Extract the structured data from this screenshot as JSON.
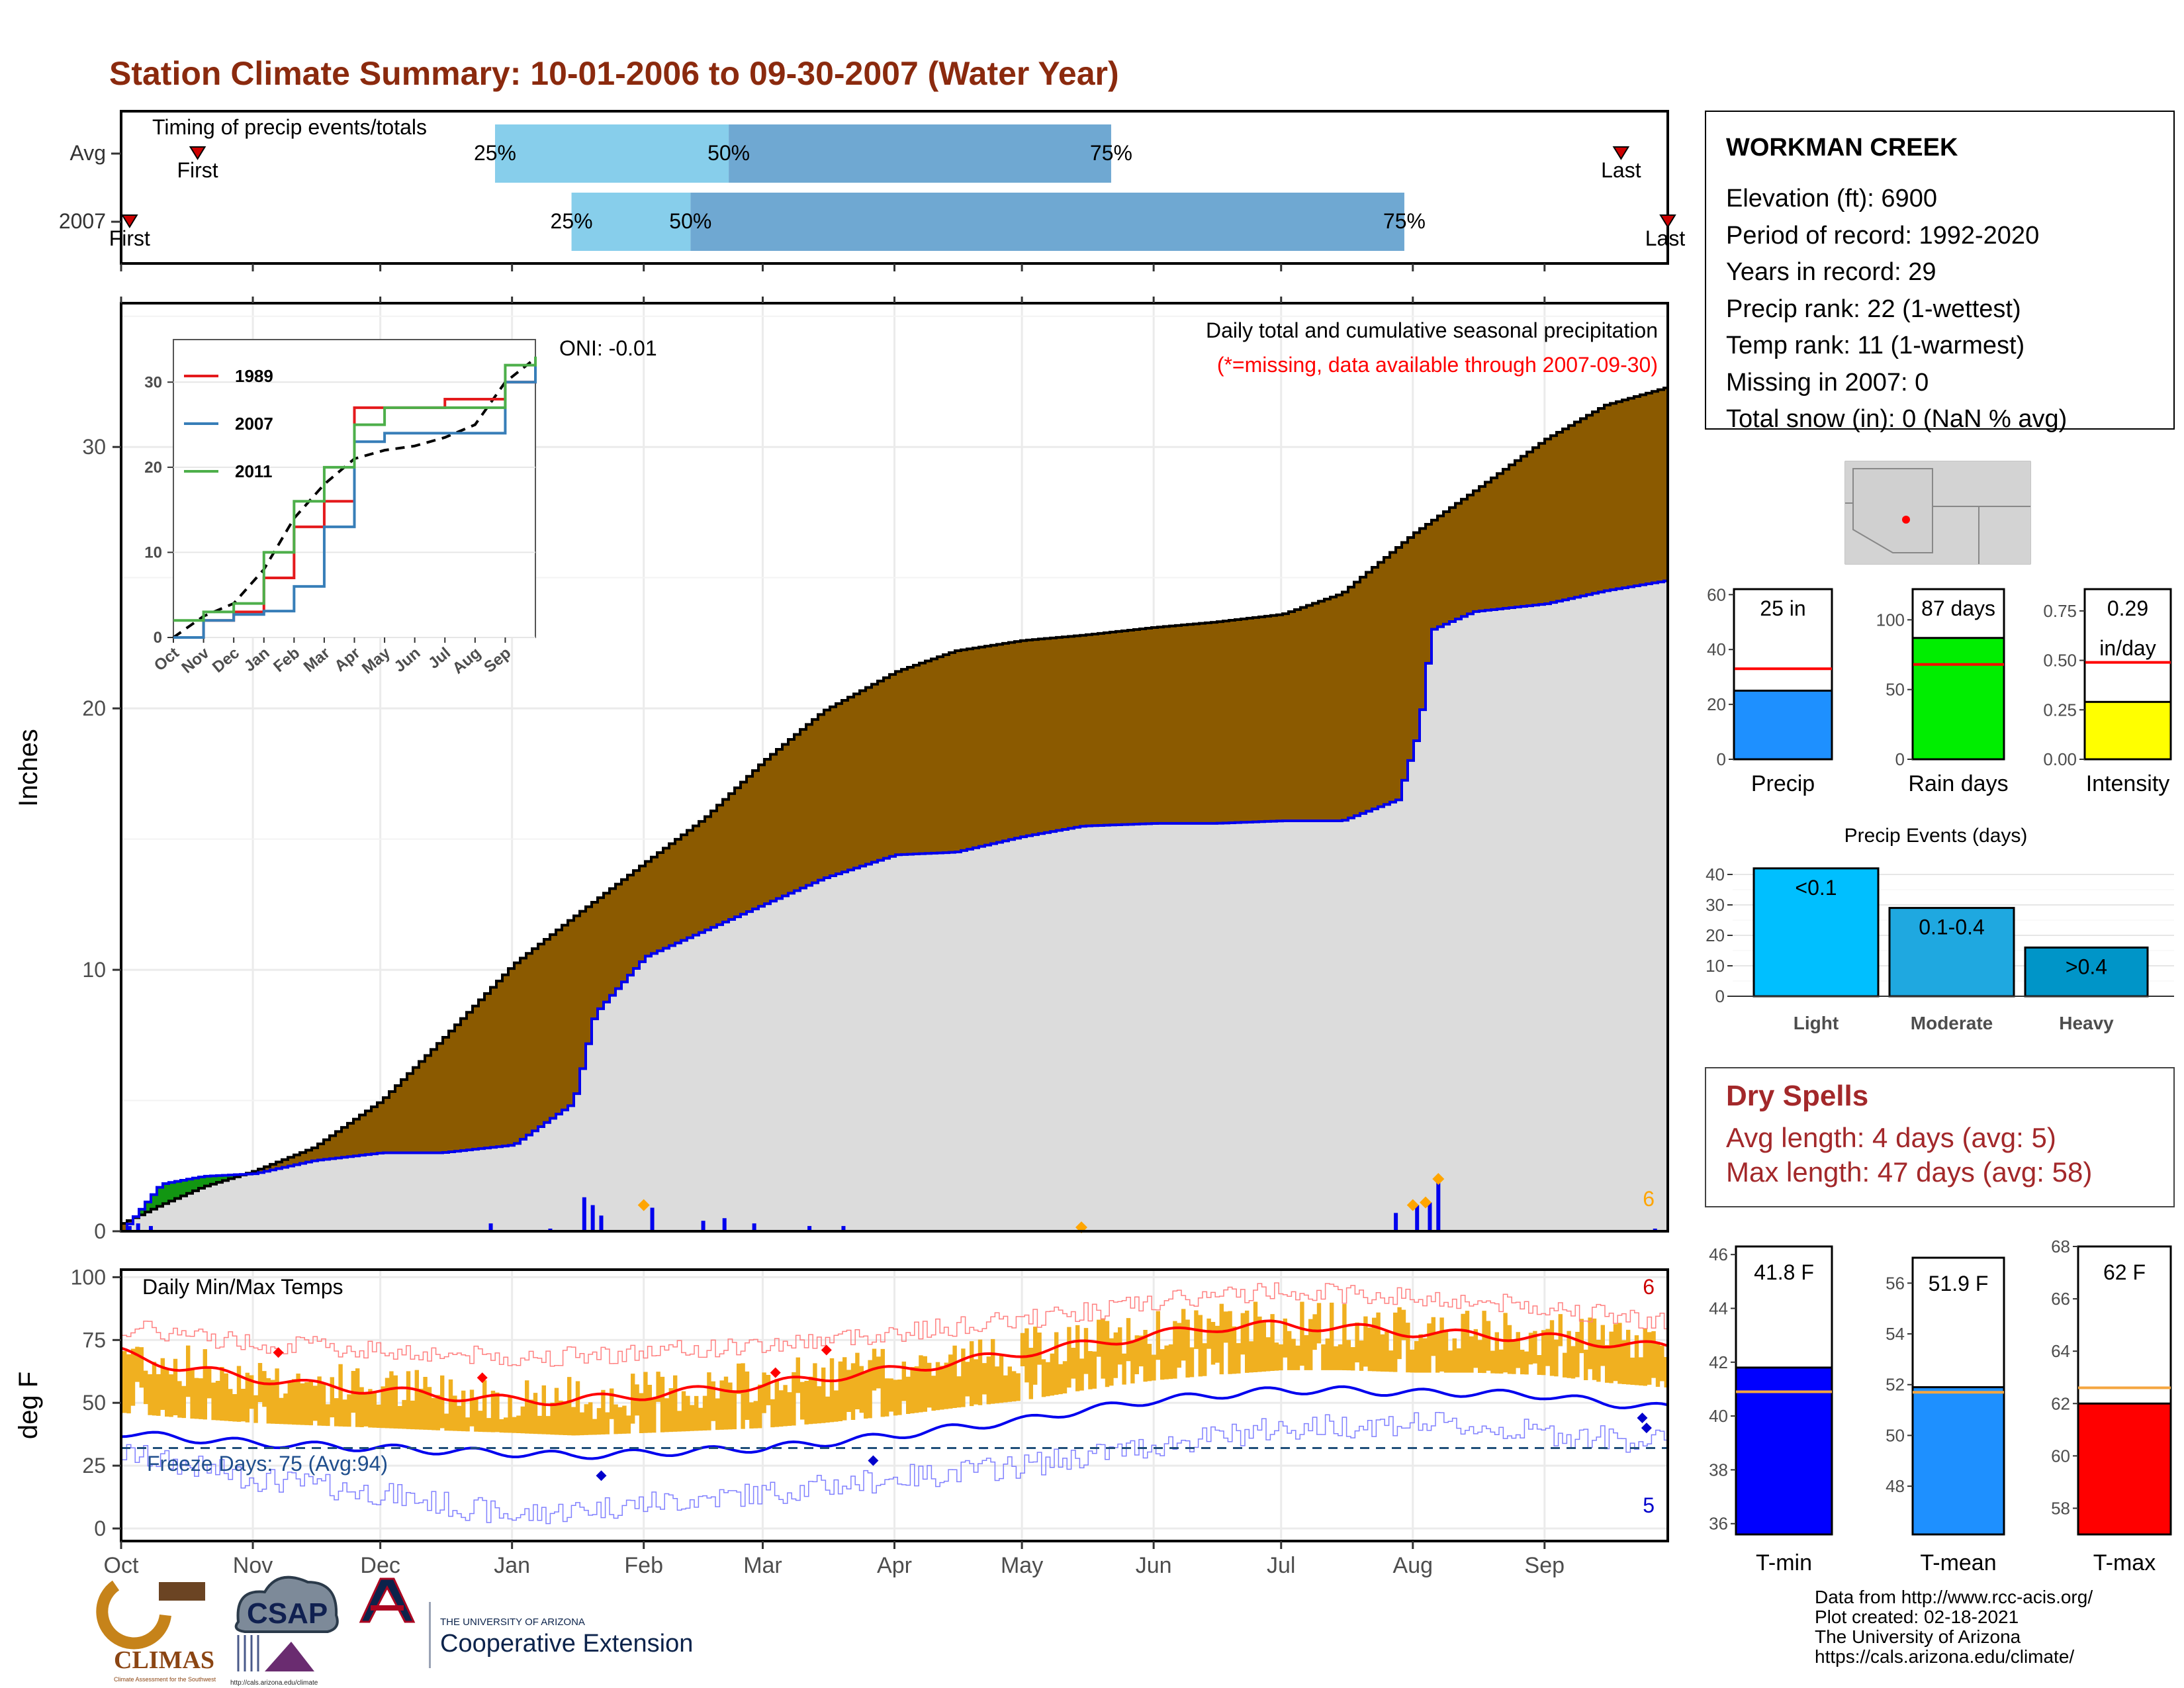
{
  "title": "Station Climate Summary: 10-01-2006 to 09-30-2007 (Water Year)",
  "colors": {
    "title": "#8b2a0e",
    "precip_light": "#87ceeb",
    "precip_dark": "#6fa8d2",
    "cum_fill": "#8b5a00",
    "grey_fill": "#dcdcdc",
    "green_fill": "#129612",
    "blue_line": "#0000ee",
    "orange": "#ffa500",
    "temp_bar": "#f0b020",
    "red_line": "#ff0000",
    "dry_spell": "#a3282a"
  },
  "timing_panel": {
    "label": "Timing of precip events/totals",
    "rows": [
      {
        "name": "Avg",
        "p25_label": "25%",
        "p50_label": "50%",
        "p75_label": "75%",
        "first_label": "First",
        "last_label": "Last",
        "first_date": "2006-10-19",
        "p25_date": "2006-12-28",
        "p50_date": "2007-02-21",
        "p75_date": "2007-05-22",
        "last_date": "2007-09-19"
      },
      {
        "name": "2007",
        "p25_label": "25%",
        "p50_label": "50%",
        "p75_label": "75%",
        "first_label": "First",
        "last_label": "Last",
        "first_date": "2006-10-03",
        "p25_date": "2007-01-15",
        "p50_date": "2007-02-12",
        "p75_date": "2007-07-30",
        "last_date": "2007-09-30"
      }
    ]
  },
  "precip_panel": {
    "ylabel": "Inches",
    "yticks": [
      0,
      10,
      20,
      30
    ],
    "ylim": [
      0,
      35.5
    ],
    "oni_label": "ONI: -0.01",
    "subtitle": "Daily total and cumulative seasonal precipitation",
    "missing_note": "(*=missing, data available through 2007-09-30)",
    "corner_count": "6",
    "inset": {
      "yticks": [
        0,
        10,
        20,
        30
      ],
      "months": [
        "Oct",
        "Nov",
        "Dec",
        "Jan",
        "Feb",
        "Mar",
        "Apr",
        "May",
        "Jun",
        "Jul",
        "Aug",
        "Sep"
      ],
      "legend": [
        {
          "name": "1989",
          "color": "#e41a1c"
        },
        {
          "name": "2007",
          "color": "#377eb8"
        },
        {
          "name": "2011",
          "color": "#4daf4a"
        }
      ]
    }
  },
  "temp_panel": {
    "ylabel": "deg F",
    "label": "Daily Min/Max Temps",
    "freeze_label": "Freeze Days: 75 (Avg:94)",
    "yticks": [
      0,
      25,
      50,
      75,
      100
    ],
    "ylim": [
      -5,
      103
    ],
    "freeze_line": 32,
    "count_top": "6",
    "count_bottom": "5"
  },
  "x_axis": {
    "months": [
      "Oct",
      "Nov",
      "Dec",
      "Jan",
      "Feb",
      "Mar",
      "Apr",
      "May",
      "Jun",
      "Jul",
      "Aug",
      "Sep"
    ]
  },
  "station_info": {
    "name": "WORKMAN CREEK",
    "lines": [
      "Elevation (ft): 6900",
      "Period of record: 1992-2020",
      "Years in record: 29",
      "Precip rank: 22 (1-wettest)",
      "Temp rank: 11 (1-warmest)",
      "Missing in 2007: 0",
      "Total snow (in): 0 (NaN % avg)"
    ]
  },
  "summary_bars": [
    {
      "name": "Precip",
      "value_label": "25 in",
      "value_label2": "",
      "value": 25,
      "avg": 33,
      "ymax": 62,
      "ticks": [
        "0",
        "20",
        "40",
        "60"
      ],
      "tick_vals": [
        0,
        20,
        40,
        60
      ],
      "color": "#1e90ff"
    },
    {
      "name": "Rain days",
      "value_label": "87 days",
      "value_label2": "",
      "value": 87,
      "avg": 68,
      "ymax": 122,
      "ticks": [
        "0",
        "50",
        "100"
      ],
      "tick_vals": [
        0,
        50,
        100
      ],
      "color": "#00ee00"
    },
    {
      "name": "Intensity",
      "value_label": "0.29",
      "value_label2": "in/day",
      "value": 0.29,
      "avg": 0.49,
      "ymax": 0.86,
      "ticks": [
        "0.00",
        "0.25",
        "0.50",
        "0.75"
      ],
      "tick_vals": [
        0,
        0.25,
        0.5,
        0.75
      ],
      "color": "#ffff00"
    }
  ],
  "precip_events": {
    "title": "Precip Events (days)",
    "yticks": [
      0,
      10,
      20,
      30,
      40
    ],
    "categories": [
      "Light",
      "Moderate",
      "Heavy"
    ],
    "labels": [
      "<0.1",
      "0.1-0.4",
      ">0.4"
    ],
    "values": [
      42,
      29,
      16
    ],
    "colors": [
      "#00bfff",
      "#1fa8e0",
      "#0095c8"
    ]
  },
  "dry_spells": {
    "title": "Dry Spells",
    "avg_line": "Avg length: 4 days (avg: 5)",
    "max_line": "Max length: 47 days (avg: 58)"
  },
  "temp_bars": [
    {
      "name": "T-min",
      "value_label": "41.8 F",
      "value": 41.8,
      "avg": 40.9,
      "ylim": [
        35.6,
        46.3
      ],
      "ticks": [
        36,
        38,
        40,
        42,
        44,
        46
      ],
      "color": "#0000ff"
    },
    {
      "name": "T-mean",
      "value_label": "51.9 F",
      "value": 51.9,
      "avg": 51.7,
      "ylim": [
        46.1,
        57.0
      ],
      "ticks": [
        48,
        50,
        52,
        54,
        56
      ],
      "color": "#1e90ff"
    },
    {
      "name": "T-max",
      "value_label": "62 F",
      "value": 62.0,
      "avg": 62.6,
      "ylim": [
        57.0,
        68.0
      ],
      "ticks": [
        58,
        60,
        62,
        64,
        66,
        68
      ],
      "color": "#ff0000"
    }
  ],
  "credits": {
    "lines": [
      "Data from http://www.rcc-acis.org/",
      "Plot created: 02-18-2021",
      "The University of Arizona",
      "https://cals.arizona.edu/climate/"
    ],
    "logo_climas": "CLIMAS",
    "logo_climas_sub": "Climate Assessment for the Southwest",
    "logo_csap": "CSAP",
    "logo_csap_url": "http://cals.arizona.edu/climate",
    "ua_line1": "THE UNIVERSITY OF ARIZONA",
    "ua_line2": "Cooperative Extension"
  },
  "chart_data": [
    {
      "type": "area",
      "panel": "cumulative seasonal precipitation",
      "x_unit": "date",
      "ylabel": "Inches",
      "ylim": [
        0,
        35.5
      ],
      "series": [
        {
          "name": "cumulative avg",
          "points": [
            [
              "2006-10-01",
              0.3
            ],
            [
              "2006-10-10",
              1.0
            ],
            [
              "2006-10-20",
              1.7
            ],
            [
              "2006-11-01",
              2.3
            ],
            [
              "2006-11-15",
              3.2
            ],
            [
              "2006-12-01",
              5.0
            ],
            [
              "2006-12-15",
              7.3
            ],
            [
              "2007-01-01",
              10.2
            ],
            [
              "2007-01-15",
              12.0
            ],
            [
              "2007-02-01",
              14.1
            ],
            [
              "2007-02-15",
              15.8
            ],
            [
              "2007-03-01",
              18.0
            ],
            [
              "2007-03-15",
              19.9
            ],
            [
              "2007-04-01",
              21.4
            ],
            [
              "2007-04-15",
              22.2
            ],
            [
              "2007-05-01",
              22.6
            ],
            [
              "2007-05-15",
              22.8
            ],
            [
              "2007-06-01",
              23.1
            ],
            [
              "2007-06-15",
              23.3
            ],
            [
              "2007-07-01",
              23.6
            ],
            [
              "2007-07-15",
              24.4
            ],
            [
              "2007-08-01",
              26.7
            ],
            [
              "2007-08-15",
              28.3
            ],
            [
              "2007-09-01",
              30.3
            ],
            [
              "2007-09-15",
              31.6
            ],
            [
              "2007-09-30",
              32.3
            ]
          ]
        },
        {
          "name": "cumulative 2007",
          "points": [
            [
              "2006-10-01",
              0
            ],
            [
              "2006-10-05",
              0.8
            ],
            [
              "2006-10-10",
              1.8
            ],
            [
              "2006-10-20",
              2.1
            ],
            [
              "2006-11-01",
              2.2
            ],
            [
              "2006-11-15",
              2.7
            ],
            [
              "2006-12-01",
              3.0
            ],
            [
              "2006-12-15",
              3.0
            ],
            [
              "2007-01-01",
              3.3
            ],
            [
              "2007-01-15",
              4.9
            ],
            [
              "2007-01-20",
              8.3
            ],
            [
              "2007-02-01",
              10.5
            ],
            [
              "2007-02-15",
              11.5
            ],
            [
              "2007-03-01",
              12.5
            ],
            [
              "2007-03-15",
              13.5
            ],
            [
              "2007-04-01",
              14.4
            ],
            [
              "2007-04-15",
              14.5
            ],
            [
              "2007-05-01",
              15.1
            ],
            [
              "2007-05-15",
              15.5
            ],
            [
              "2007-06-01",
              15.6
            ],
            [
              "2007-06-15",
              15.6
            ],
            [
              "2007-07-01",
              15.7
            ],
            [
              "2007-07-15",
              15.7
            ],
            [
              "2007-07-28",
              16.5
            ],
            [
              "2007-08-02",
              19.2
            ],
            [
              "2007-08-05",
              23.0
            ],
            [
              "2007-08-15",
              23.7
            ],
            [
              "2007-09-01",
              24.0
            ],
            [
              "2007-09-15",
              24.5
            ],
            [
              "2007-09-30",
              24.9
            ]
          ]
        }
      ]
    },
    {
      "type": "bar",
      "panel": "daily precipitation",
      "x_unit": "date",
      "ylabel": "Inches",
      "points": [
        [
          "2006-10-03",
          0.2
        ],
        [
          "2006-10-05",
          0.3
        ],
        [
          "2006-10-08",
          0.2
        ],
        [
          "2006-11-12",
          0.05
        ],
        [
          "2006-12-27",
          0.3
        ],
        [
          "2007-01-10",
          0.1
        ],
        [
          "2007-01-18",
          1.3
        ],
        [
          "2007-01-20",
          1.0
        ],
        [
          "2007-01-22",
          0.6
        ],
        [
          "2007-02-03",
          0.9
        ],
        [
          "2007-02-15",
          0.4
        ],
        [
          "2007-02-20",
          0.5
        ],
        [
          "2007-02-27",
          0.3
        ],
        [
          "2007-03-12",
          0.2
        ],
        [
          "2007-03-20",
          0.2
        ],
        [
          "2007-04-12",
          0.05
        ],
        [
          "2007-05-16",
          0.05
        ],
        [
          "2007-07-28",
          0.7
        ],
        [
          "2007-08-02",
          1.0
        ],
        [
          "2007-08-05",
          1.1
        ],
        [
          "2007-08-07",
          1.9
        ],
        [
          "2007-09-27",
          0.1
        ]
      ]
    },
    {
      "type": "line",
      "panel": "daily min/max temperatures",
      "x_unit": "date",
      "ylabel": "deg F",
      "ylim": [
        -5,
        103
      ],
      "series": [
        {
          "name": "avg max",
          "points": [
            [
              "2006-10-01",
              70
            ],
            [
              "2006-10-15",
              64
            ],
            [
              "2006-11-01",
              60
            ],
            [
              "2006-11-15",
              57
            ],
            [
              "2006-12-01",
              55
            ],
            [
              "2006-12-15",
              53
            ],
            [
              "2007-01-01",
              51
            ],
            [
              "2007-01-15",
              51
            ],
            [
              "2007-02-01",
              53
            ],
            [
              "2007-02-15",
              55
            ],
            [
              "2007-03-01",
              57
            ],
            [
              "2007-03-15",
              60
            ],
            [
              "2007-04-01",
              63
            ],
            [
              "2007-04-15",
              66
            ],
            [
              "2007-05-01",
              70
            ],
            [
              "2007-05-15",
              73
            ],
            [
              "2007-06-01",
              77
            ],
            [
              "2007-06-15",
              80
            ],
            [
              "2007-07-01",
              81
            ],
            [
              "2007-07-15",
              80
            ],
            [
              "2007-08-01",
              78
            ],
            [
              "2007-08-15",
              77
            ],
            [
              "2007-09-01",
              76
            ],
            [
              "2007-09-15",
              74
            ],
            [
              "2007-09-30",
              72
            ]
          ]
        },
        {
          "name": "avg min",
          "points": [
            [
              "2006-10-01",
              38
            ],
            [
              "2006-10-15",
              36
            ],
            [
              "2006-11-01",
              34
            ],
            [
              "2006-11-15",
              33
            ],
            [
              "2006-12-01",
              32
            ],
            [
              "2006-12-15",
              31
            ],
            [
              "2007-01-01",
              30
            ],
            [
              "2007-01-15",
              29
            ],
            [
              "2007-02-01",
              30
            ],
            [
              "2007-02-15",
              31
            ],
            [
              "2007-03-01",
              32
            ],
            [
              "2007-03-15",
              34
            ],
            [
              "2007-04-01",
              37
            ],
            [
              "2007-04-15",
              40
            ],
            [
              "2007-05-01",
              43
            ],
            [
              "2007-05-15",
              47
            ],
            [
              "2007-06-01",
              51
            ],
            [
              "2007-06-15",
              53
            ],
            [
              "2007-07-01",
              55
            ],
            [
              "2007-07-15",
              55
            ],
            [
              "2007-08-01",
              54
            ],
            [
              "2007-08-15",
              54
            ],
            [
              "2007-09-01",
              53
            ],
            [
              "2007-09-15",
              50
            ],
            [
              "2007-09-30",
              48
            ]
          ]
        },
        {
          "name": "record max",
          "points": [
            [
              "2006-10-01",
              80
            ],
            [
              "2006-11-01",
              74
            ],
            [
              "2006-12-01",
              71
            ],
            [
              "2007-01-01",
              68
            ],
            [
              "2007-02-01",
              70
            ],
            [
              "2007-03-01",
              73
            ],
            [
              "2007-04-01",
              78
            ],
            [
              "2007-05-01",
              83
            ],
            [
              "2007-06-01",
              90
            ],
            [
              "2007-07-01",
              95
            ],
            [
              "2007-08-01",
              92
            ],
            [
              "2007-09-01",
              88
            ],
            [
              "2007-09-30",
              82
            ]
          ]
        },
        {
          "name": "record min",
          "points": [
            [
              "2006-10-01",
              30
            ],
            [
              "2006-11-01",
              20
            ],
            [
              "2006-12-01",
              14
            ],
            [
              "2007-01-01",
              5
            ],
            [
              "2007-02-01",
              10
            ],
            [
              "2007-03-01",
              14
            ],
            [
              "2007-04-01",
              20
            ],
            [
              "2007-05-01",
              25
            ],
            [
              "2007-06-01",
              33
            ],
            [
              "2007-07-01",
              40
            ],
            [
              "2007-08-01",
              42
            ],
            [
              "2007-09-01",
              38
            ],
            [
              "2007-09-30",
              34
            ]
          ]
        }
      ]
    },
    {
      "type": "line",
      "panel": "inset cumulative precipitation",
      "ylim": [
        0,
        35
      ],
      "series": [
        {
          "name": "1989",
          "values": [
            0,
            2,
            3,
            7,
            13,
            16,
            27,
            27,
            27,
            28,
            28,
            30,
            31
          ]
        },
        {
          "name": "2007",
          "values": [
            0,
            2,
            2.7,
            3.1,
            6,
            13,
            23,
            24,
            24,
            24,
            24,
            30,
            32
          ]
        },
        {
          "name": "2011",
          "values": [
            2,
            3,
            4,
            10,
            16,
            20,
            25,
            27,
            27,
            27,
            27,
            32,
            33
          ]
        }
      ]
    },
    {
      "type": "bar",
      "panel": "Precip Events (days)",
      "categories": [
        "Light",
        "Moderate",
        "Heavy"
      ],
      "values": [
        42,
        29,
        16
      ]
    }
  ]
}
